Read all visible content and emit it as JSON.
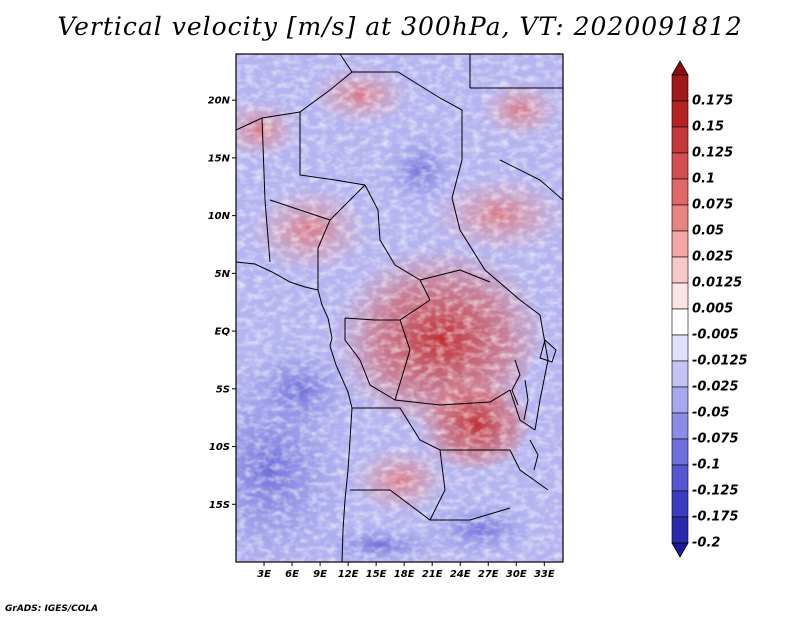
{
  "title": "Vertical velocity [m/s] at 300hPa, VT: 2020091812",
  "credit": "GrADS: IGES/COLA",
  "map": {
    "variable": "Vertical velocity",
    "units": "m/s",
    "level": "300hPa",
    "valid_time": "2020091812",
    "lon_range": [
      0,
      35
    ],
    "lat_range": [
      -20,
      24
    ],
    "lat_ticks": [
      {
        "value": 20,
        "label": "20N"
      },
      {
        "value": 15,
        "label": "15N"
      },
      {
        "value": 10,
        "label": "10N"
      },
      {
        "value": 5,
        "label": "5N"
      },
      {
        "value": 0,
        "label": "EQ"
      },
      {
        "value": -5,
        "label": "5S"
      },
      {
        "value": -10,
        "label": "10S"
      },
      {
        "value": -15,
        "label": "15S"
      }
    ],
    "lon_ticks": [
      {
        "value": 3,
        "label": "3E"
      },
      {
        "value": 6,
        "label": "6E"
      },
      {
        "value": 9,
        "label": "9E"
      },
      {
        "value": 12,
        "label": "12E"
      },
      {
        "value": 15,
        "label": "15E"
      },
      {
        "value": 18,
        "label": "18E"
      },
      {
        "value": 21,
        "label": "21E"
      },
      {
        "value": 24,
        "label": "24E"
      },
      {
        "value": 27,
        "label": "27E"
      },
      {
        "value": 30,
        "label": "30E"
      },
      {
        "value": 33,
        "label": "33E"
      }
    ]
  },
  "colorbar": {
    "levels": [
      {
        "label": "0.175",
        "color": "#a01818"
      },
      {
        "label": "0.15",
        "color": "#b52222"
      },
      {
        "label": "0.125",
        "color": "#c63838"
      },
      {
        "label": "0.1",
        "color": "#d45050"
      },
      {
        "label": "0.075",
        "color": "#e06868"
      },
      {
        "label": "0.05",
        "color": "#ea8484"
      },
      {
        "label": "0.025",
        "color": "#f2a6a6"
      },
      {
        "label": "0.0125",
        "color": "#f8c8c8"
      },
      {
        "label": "0.005",
        "color": "#fde4e4"
      },
      {
        "label": "-0.005",
        "color": "#ffffff"
      },
      {
        "label": "-0.0125",
        "color": "#e0e0fb"
      },
      {
        "label": "-0.025",
        "color": "#c4c4f4"
      },
      {
        "label": "-0.05",
        "color": "#a8a8ee"
      },
      {
        "label": "-0.075",
        "color": "#8c8ce6"
      },
      {
        "label": "-0.1",
        "color": "#7070dc"
      },
      {
        "label": "-0.125",
        "color": "#5656d0"
      },
      {
        "label": "-0.175",
        "color": "#3c3cc0"
      },
      {
        "label": "-0.2",
        "color": "#2a2aae"
      }
    ],
    "top_color": "#8c0e0e",
    "bottom_color": "#1a1a96"
  },
  "colors": {
    "positive": "#c63838",
    "negative": "#5656d0",
    "boundary": "#000000"
  }
}
